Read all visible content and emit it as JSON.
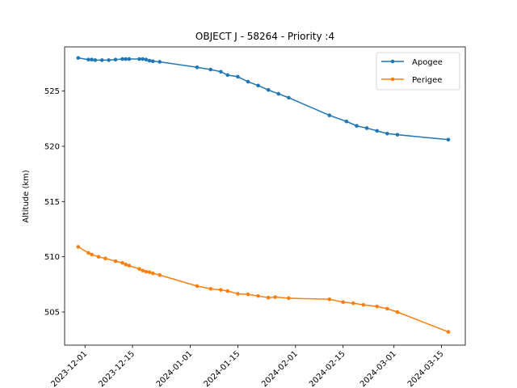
{
  "chart_data": {
    "type": "line",
    "title": "OBJECT J - 58264 - Priority :4",
    "xlabel": "",
    "ylabel": "Altitude (km)",
    "x_type": "date",
    "xlim": [
      "2023-11-25",
      "2024-03-22"
    ],
    "ylim": [
      502.0,
      529.0
    ],
    "x_ticks": [
      "2023-12-01",
      "2023-12-15",
      "2024-01-01",
      "2024-01-15",
      "2024-02-01",
      "2024-02-15",
      "2024-03-01",
      "2024-03-15"
    ],
    "y_ticks": [
      505,
      510,
      515,
      520,
      525
    ],
    "grid": false,
    "legend": "top-right",
    "series": [
      {
        "name": "Apogee",
        "color": "#1f77b4",
        "points": [
          [
            "2023-11-29",
            528.0
          ],
          [
            "2023-12-02",
            527.85
          ],
          [
            "2023-12-03",
            527.85
          ],
          [
            "2023-12-04",
            527.8
          ],
          [
            "2023-12-06",
            527.8
          ],
          [
            "2023-12-08",
            527.8
          ],
          [
            "2023-12-10",
            527.85
          ],
          [
            "2023-12-12",
            527.9
          ],
          [
            "2023-12-13",
            527.9
          ],
          [
            "2023-12-14",
            527.9
          ],
          [
            "2023-12-17",
            527.9
          ],
          [
            "2023-12-18",
            527.9
          ],
          [
            "2023-12-19",
            527.85
          ],
          [
            "2023-12-20",
            527.75
          ],
          [
            "2023-12-21",
            527.7
          ],
          [
            "2023-12-23",
            527.65
          ],
          [
            "2024-01-03",
            527.15
          ],
          [
            "2024-01-07",
            526.95
          ],
          [
            "2024-01-10",
            526.75
          ],
          [
            "2024-01-12",
            526.45
          ],
          [
            "2024-01-15",
            526.3
          ],
          [
            "2024-01-18",
            525.85
          ],
          [
            "2024-01-21",
            525.5
          ],
          [
            "2024-01-24",
            525.1
          ],
          [
            "2024-01-27",
            524.75
          ],
          [
            "2024-01-30",
            524.4
          ],
          [
            "2024-02-11",
            522.8
          ],
          [
            "2024-02-16",
            522.25
          ],
          [
            "2024-02-19",
            521.85
          ],
          [
            "2024-02-22",
            521.65
          ],
          [
            "2024-02-25",
            521.4
          ],
          [
            "2024-02-28",
            521.15
          ],
          [
            "2024-03-02",
            521.05
          ],
          [
            "2024-03-17",
            520.6
          ]
        ]
      },
      {
        "name": "Perigee",
        "color": "#ff7f0e",
        "points": [
          [
            "2023-11-29",
            510.9
          ],
          [
            "2023-12-02",
            510.35
          ],
          [
            "2023-12-03",
            510.2
          ],
          [
            "2023-12-05",
            510.0
          ],
          [
            "2023-12-07",
            509.85
          ],
          [
            "2023-12-10",
            509.6
          ],
          [
            "2023-12-12",
            509.45
          ],
          [
            "2023-12-13",
            509.3
          ],
          [
            "2023-12-14",
            509.2
          ],
          [
            "2023-12-17",
            508.9
          ],
          [
            "2023-12-18",
            508.75
          ],
          [
            "2023-12-19",
            508.65
          ],
          [
            "2023-12-20",
            508.6
          ],
          [
            "2023-12-21",
            508.5
          ],
          [
            "2023-12-23",
            508.35
          ],
          [
            "2024-01-03",
            507.35
          ],
          [
            "2024-01-07",
            507.1
          ],
          [
            "2024-01-10",
            507.0
          ],
          [
            "2024-01-12",
            506.9
          ],
          [
            "2024-01-15",
            506.65
          ],
          [
            "2024-01-18",
            506.6
          ],
          [
            "2024-01-21",
            506.45
          ],
          [
            "2024-01-24",
            506.3
          ],
          [
            "2024-01-26",
            506.35
          ],
          [
            "2024-01-30",
            506.25
          ],
          [
            "2024-02-11",
            506.15
          ],
          [
            "2024-02-15",
            505.9
          ],
          [
            "2024-02-18",
            505.8
          ],
          [
            "2024-02-21",
            505.65
          ],
          [
            "2024-02-25",
            505.5
          ],
          [
            "2024-02-28",
            505.3
          ],
          [
            "2024-03-02",
            505.0
          ],
          [
            "2024-03-17",
            503.2
          ]
        ]
      }
    ]
  }
}
